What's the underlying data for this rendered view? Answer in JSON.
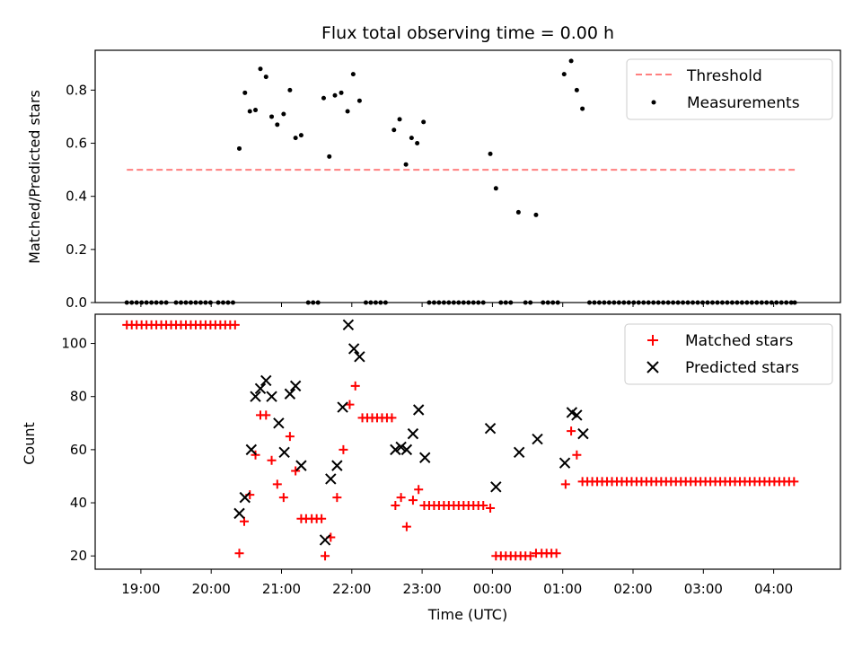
{
  "chart_data": [
    {
      "type": "scatter",
      "title": "Flux total observing time = 0.00 h",
      "xlabel": "",
      "ylabel": "Matched/Predicted stars",
      "xlim_hours": [
        18.35,
        28.95
      ],
      "ylim": [
        0,
        0.95
      ],
      "yticks": [
        0.0,
        0.2,
        0.4,
        0.6,
        0.8
      ],
      "ytick_labels": [
        "0.0",
        "0.2",
        "0.4",
        "0.6",
        "0.8"
      ],
      "legend": {
        "placement": "top-right",
        "threshold_label": "Threshold",
        "measurements_label": "Measurements"
      },
      "threshold": {
        "value": 0.5,
        "x_start_hours": 18.8,
        "x_end_hours": 28.3,
        "color": "#ff7f7f"
      },
      "measurements": {
        "color": "#000000",
        "points": [
          [
            18.8,
            0
          ],
          [
            18.87,
            0
          ],
          [
            18.94,
            0
          ],
          [
            19.01,
            0
          ],
          [
            19.08,
            0
          ],
          [
            19.15,
            0
          ],
          [
            19.22,
            0
          ],
          [
            19.29,
            0
          ],
          [
            19.36,
            0
          ],
          [
            19.5,
            0
          ],
          [
            19.57,
            0
          ],
          [
            19.64,
            0
          ],
          [
            19.71,
            0
          ],
          [
            19.78,
            0
          ],
          [
            19.85,
            0
          ],
          [
            19.92,
            0
          ],
          [
            19.99,
            0
          ],
          [
            20.1,
            0
          ],
          [
            20.17,
            0
          ],
          [
            20.24,
            0
          ],
          [
            20.31,
            0
          ],
          [
            20.4,
            0.58
          ],
          [
            20.48,
            0.79
          ],
          [
            20.55,
            0.72
          ],
          [
            20.63,
            0.725
          ],
          [
            20.7,
            0.88
          ],
          [
            20.78,
            0.85
          ],
          [
            20.86,
            0.7
          ],
          [
            20.94,
            0.67
          ],
          [
            21.03,
            0.71
          ],
          [
            21.12,
            0.8
          ],
          [
            21.2,
            0.62
          ],
          [
            21.28,
            0.63
          ],
          [
            21.38,
            0
          ],
          [
            21.45,
            0
          ],
          [
            21.52,
            0
          ],
          [
            21.6,
            0.77
          ],
          [
            21.68,
            0.55
          ],
          [
            21.76,
            0.78
          ],
          [
            21.85,
            0.79
          ],
          [
            21.94,
            0.72
          ],
          [
            22.02,
            0.86
          ],
          [
            22.11,
            0.76
          ],
          [
            22.2,
            0
          ],
          [
            22.27,
            0
          ],
          [
            22.34,
            0
          ],
          [
            22.41,
            0
          ],
          [
            22.48,
            0
          ],
          [
            22.6,
            0.65
          ],
          [
            22.68,
            0.69
          ],
          [
            22.77,
            0.52
          ],
          [
            22.85,
            0.62
          ],
          [
            22.93,
            0.6
          ],
          [
            23.02,
            0.68
          ],
          [
            23.1,
            0
          ],
          [
            23.17,
            0
          ],
          [
            23.24,
            0
          ],
          [
            23.31,
            0
          ],
          [
            23.38,
            0
          ],
          [
            23.45,
            0
          ],
          [
            23.52,
            0
          ],
          [
            23.59,
            0
          ],
          [
            23.66,
            0
          ],
          [
            23.73,
            0
          ],
          [
            23.8,
            0
          ],
          [
            23.87,
            0
          ],
          [
            23.97,
            0.56
          ],
          [
            24.05,
            0.43
          ],
          [
            24.12,
            0
          ],
          [
            24.19,
            0
          ],
          [
            24.26,
            0
          ],
          [
            24.37,
            0.34
          ],
          [
            24.47,
            0
          ],
          [
            24.54,
            0
          ],
          [
            24.62,
            0.33
          ],
          [
            24.72,
            0
          ],
          [
            24.79,
            0
          ],
          [
            24.86,
            0
          ],
          [
            24.93,
            0
          ],
          [
            25.02,
            0.86
          ],
          [
            25.12,
            0.91
          ],
          [
            25.2,
            0.8
          ],
          [
            25.28,
            0.73
          ],
          [
            25.38,
            0
          ],
          [
            25.45,
            0
          ],
          [
            25.52,
            0
          ],
          [
            25.59,
            0
          ],
          [
            25.66,
            0
          ],
          [
            25.73,
            0
          ],
          [
            25.8,
            0
          ],
          [
            25.87,
            0
          ],
          [
            25.94,
            0
          ],
          [
            26.01,
            0
          ],
          [
            26.08,
            0
          ],
          [
            26.15,
            0
          ],
          [
            26.22,
            0
          ],
          [
            26.29,
            0
          ],
          [
            26.36,
            0
          ],
          [
            26.43,
            0
          ],
          [
            26.5,
            0
          ],
          [
            26.57,
            0
          ],
          [
            26.64,
            0
          ],
          [
            26.71,
            0
          ],
          [
            26.78,
            0
          ],
          [
            26.85,
            0
          ],
          [
            26.92,
            0
          ],
          [
            26.99,
            0
          ],
          [
            27.06,
            0
          ],
          [
            27.13,
            0
          ],
          [
            27.2,
            0
          ],
          [
            27.27,
            0
          ],
          [
            27.34,
            0
          ],
          [
            27.41,
            0
          ],
          [
            27.48,
            0
          ],
          [
            27.55,
            0
          ],
          [
            27.62,
            0
          ],
          [
            27.69,
            0
          ],
          [
            27.76,
            0
          ],
          [
            27.83,
            0
          ],
          [
            27.9,
            0
          ],
          [
            27.97,
            0
          ],
          [
            28.04,
            0
          ],
          [
            28.11,
            0
          ],
          [
            28.18,
            0
          ],
          [
            28.25,
            0
          ],
          [
            28.3,
            0
          ]
        ]
      }
    },
    {
      "type": "scatter",
      "title": "",
      "xlabel": "Time (UTC)",
      "ylabel": "Count",
      "xlim_hours": [
        18.35,
        28.95
      ],
      "ylim": [
        15,
        111
      ],
      "yticks": [
        20,
        40,
        60,
        80,
        100
      ],
      "ytick_labels": [
        "20",
        "40",
        "60",
        "80",
        "100"
      ],
      "xticks_hours": [
        19,
        20,
        21,
        22,
        23,
        24,
        25,
        26,
        27,
        28
      ],
      "xtick_labels": [
        "19:00",
        "20:00",
        "21:00",
        "22:00",
        "23:00",
        "00:00",
        "01:00",
        "02:00",
        "03:00",
        "04:00"
      ],
      "legend": {
        "placement": "top-right",
        "matched_label": "Matched stars",
        "predicted_label": "Predicted stars"
      },
      "matched": {
        "color": "#ff0000",
        "marker": "+",
        "points": [
          [
            18.8,
            107
          ],
          [
            18.87,
            107
          ],
          [
            18.94,
            107
          ],
          [
            19.01,
            107
          ],
          [
            19.08,
            107
          ],
          [
            19.15,
            107
          ],
          [
            19.22,
            107
          ],
          [
            19.29,
            107
          ],
          [
            19.36,
            107
          ],
          [
            19.43,
            107
          ],
          [
            19.5,
            107
          ],
          [
            19.57,
            107
          ],
          [
            19.64,
            107
          ],
          [
            19.71,
            107
          ],
          [
            19.78,
            107
          ],
          [
            19.85,
            107
          ],
          [
            19.92,
            107
          ],
          [
            19.99,
            107
          ],
          [
            20.06,
            107
          ],
          [
            20.13,
            107
          ],
          [
            20.2,
            107
          ],
          [
            20.27,
            107
          ],
          [
            20.34,
            107
          ],
          [
            20.4,
            21
          ],
          [
            20.47,
            33
          ],
          [
            20.55,
            43
          ],
          [
            20.63,
            58
          ],
          [
            20.7,
            73
          ],
          [
            20.78,
            73
          ],
          [
            20.86,
            56
          ],
          [
            20.94,
            47
          ],
          [
            21.03,
            42
          ],
          [
            21.12,
            65
          ],
          [
            21.2,
            52
          ],
          [
            21.28,
            34
          ],
          [
            21.35,
            34
          ],
          [
            21.43,
            34
          ],
          [
            21.5,
            34
          ],
          [
            21.57,
            34
          ],
          [
            21.62,
            20
          ],
          [
            21.7,
            27
          ],
          [
            21.79,
            42
          ],
          [
            21.88,
            60
          ],
          [
            21.97,
            77
          ],
          [
            22.05,
            84
          ],
          [
            22.15,
            72
          ],
          [
            22.22,
            72
          ],
          [
            22.29,
            72
          ],
          [
            22.36,
            72
          ],
          [
            22.43,
            72
          ],
          [
            22.5,
            72
          ],
          [
            22.57,
            72
          ],
          [
            22.62,
            39
          ],
          [
            22.7,
            42
          ],
          [
            22.78,
            31
          ],
          [
            22.87,
            41
          ],
          [
            22.95,
            45
          ],
          [
            23.03,
            39
          ],
          [
            23.1,
            39
          ],
          [
            23.17,
            39
          ],
          [
            23.24,
            39
          ],
          [
            23.31,
            39
          ],
          [
            23.38,
            39
          ],
          [
            23.45,
            39
          ],
          [
            23.52,
            39
          ],
          [
            23.59,
            39
          ],
          [
            23.66,
            39
          ],
          [
            23.73,
            39
          ],
          [
            23.8,
            39
          ],
          [
            23.87,
            39
          ],
          [
            23.97,
            38
          ],
          [
            24.05,
            20
          ],
          [
            24.12,
            20
          ],
          [
            24.19,
            20
          ],
          [
            24.26,
            20
          ],
          [
            24.33,
            20
          ],
          [
            24.4,
            20
          ],
          [
            24.47,
            20
          ],
          [
            24.54,
            20
          ],
          [
            24.62,
            21
          ],
          [
            24.7,
            21
          ],
          [
            24.77,
            21
          ],
          [
            24.84,
            21
          ],
          [
            24.91,
            21
          ],
          [
            25.04,
            47
          ],
          [
            25.12,
            67
          ],
          [
            25.2,
            58
          ],
          [
            25.28,
            48
          ],
          [
            25.35,
            48
          ],
          [
            25.42,
            48
          ],
          [
            25.49,
            48
          ],
          [
            25.56,
            48
          ],
          [
            25.63,
            48
          ],
          [
            25.7,
            48
          ],
          [
            25.77,
            48
          ],
          [
            25.84,
            48
          ],
          [
            25.91,
            48
          ],
          [
            25.98,
            48
          ],
          [
            26.05,
            48
          ],
          [
            26.12,
            48
          ],
          [
            26.19,
            48
          ],
          [
            26.26,
            48
          ],
          [
            26.33,
            48
          ],
          [
            26.4,
            48
          ],
          [
            26.47,
            48
          ],
          [
            26.54,
            48
          ],
          [
            26.61,
            48
          ],
          [
            26.68,
            48
          ],
          [
            26.75,
            48
          ],
          [
            26.82,
            48
          ],
          [
            26.89,
            48
          ],
          [
            26.96,
            48
          ],
          [
            27.03,
            48
          ],
          [
            27.1,
            48
          ],
          [
            27.17,
            48
          ],
          [
            27.24,
            48
          ],
          [
            27.31,
            48
          ],
          [
            27.38,
            48
          ],
          [
            27.45,
            48
          ],
          [
            27.52,
            48
          ],
          [
            27.59,
            48
          ],
          [
            27.66,
            48
          ],
          [
            27.73,
            48
          ],
          [
            27.8,
            48
          ],
          [
            27.87,
            48
          ],
          [
            27.94,
            48
          ],
          [
            28.01,
            48
          ],
          [
            28.08,
            48
          ],
          [
            28.15,
            48
          ],
          [
            28.22,
            48
          ],
          [
            28.29,
            48
          ]
        ]
      },
      "predicted": {
        "color": "#000000",
        "marker": "x",
        "points": [
          [
            20.4,
            36
          ],
          [
            20.48,
            42
          ],
          [
            20.57,
            60
          ],
          [
            20.63,
            80
          ],
          [
            20.7,
            83
          ],
          [
            20.78,
            86
          ],
          [
            20.86,
            80
          ],
          [
            20.96,
            70
          ],
          [
            21.04,
            59
          ],
          [
            21.12,
            81
          ],
          [
            21.2,
            84
          ],
          [
            21.28,
            54
          ],
          [
            21.62,
            26
          ],
          [
            21.7,
            49
          ],
          [
            21.79,
            54
          ],
          [
            21.87,
            76
          ],
          [
            21.95,
            107
          ],
          [
            22.03,
            98
          ],
          [
            22.11,
            95
          ],
          [
            22.62,
            60
          ],
          [
            22.7,
            61
          ],
          [
            22.78,
            60
          ],
          [
            22.87,
            66
          ],
          [
            22.95,
            75
          ],
          [
            23.04,
            57
          ],
          [
            23.97,
            68
          ],
          [
            24.05,
            46
          ],
          [
            24.38,
            59
          ],
          [
            24.64,
            64
          ],
          [
            25.03,
            55
          ],
          [
            25.13,
            74
          ],
          [
            25.2,
            73
          ],
          [
            25.29,
            66
          ]
        ]
      }
    }
  ]
}
